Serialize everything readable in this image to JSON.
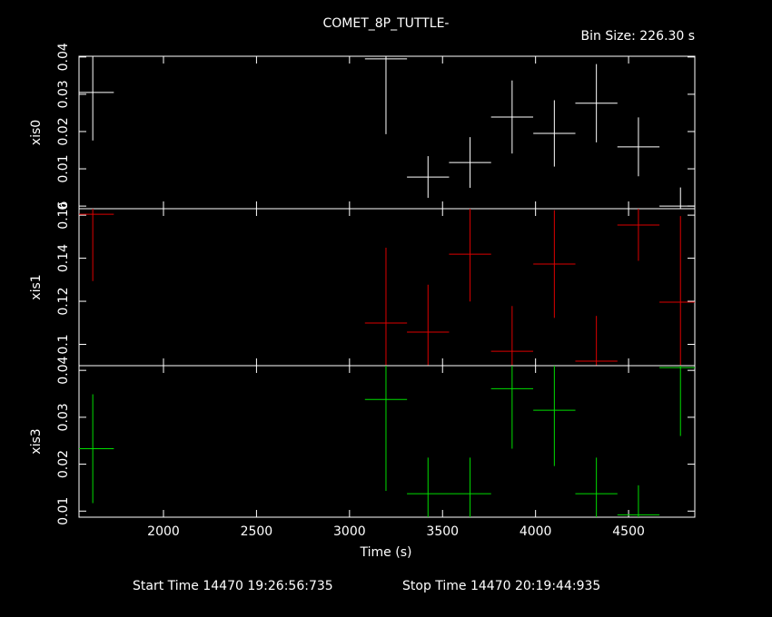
{
  "title": "COMET_8P_TUTTLE-",
  "bin_size": {
    "value": 226.3,
    "label": "Bin Size: 226.30 s"
  },
  "start_time": "Start Time 14470 19:26:56:735",
  "stop_time": "Stop Time 14470 20:19:44:935",
  "chart_data": [
    {
      "type": "errorbar",
      "ylabel": "xis0",
      "color": "#ffffff",
      "x": [
        1620,
        3196,
        3422,
        3648,
        3874,
        4101,
        4327,
        4553,
        4779
      ],
      "values": [
        0.0305,
        0.0395,
        0.0078,
        0.0117,
        0.0239,
        0.0195,
        0.0276,
        0.0159,
        0
      ],
      "errors": [
        0.0129,
        0.0202,
        0.0056,
        0.0068,
        0.0098,
        0.0089,
        0.0105,
        0.0079,
        0.005
      ],
      "xlim": [
        1546,
        4856
      ],
      "xticks": [
        2000,
        2500,
        3000,
        3500,
        4000,
        4500
      ],
      "ylim": [
        -0.0007,
        0.0402
      ],
      "yticks": [
        0,
        0.01,
        0.02,
        0.03,
        0.04
      ]
    },
    {
      "type": "errorbar",
      "ylabel": "xis1",
      "color": "#dd0000",
      "x": [
        1620,
        3196,
        3422,
        3648,
        3874,
        4101,
        4327,
        4553,
        4779
      ],
      "values": [
        0.1604,
        0.1099,
        0.1057,
        0.1419,
        0.0968,
        0.1373,
        0.0922,
        0.1554,
        0.1196
      ],
      "errors": [
        0.031,
        0.035,
        0.022,
        0.022,
        0.021,
        0.025,
        0.021,
        0.0166,
        0.04
      ],
      "xlim": [
        1546,
        4856
      ],
      "xticks": [
        2000,
        2500,
        3000,
        3500,
        4000,
        4500
      ],
      "ylim": [
        0.0901,
        0.163
      ],
      "yticks": [
        0.1,
        0.12,
        0.14,
        0.16
      ]
    },
    {
      "type": "errorbar",
      "ylabel": "xis3",
      "xlabel": "Time (s)",
      "color": "#00dd00",
      "x": [
        1620,
        3196,
        3422,
        3648,
        3874,
        4101,
        4327,
        4553,
        4779
      ],
      "values": [
        0.0233,
        0.0338,
        0.0137,
        0.0137,
        0.0361,
        0.0315,
        0.0137,
        0.0092,
        0.0406
      ],
      "errors": [
        0.0116,
        0.0195,
        0.0077,
        0.0077,
        0.0128,
        0.0119,
        0.0077,
        0.0063,
        0.0146
      ],
      "xlim": [
        1546,
        4856
      ],
      "xticks": [
        2000,
        2500,
        3000,
        3500,
        4000,
        4500
      ],
      "ylim": [
        0.0087,
        0.041
      ],
      "yticks": [
        0.01,
        0.02,
        0.03,
        0.04
      ]
    }
  ]
}
